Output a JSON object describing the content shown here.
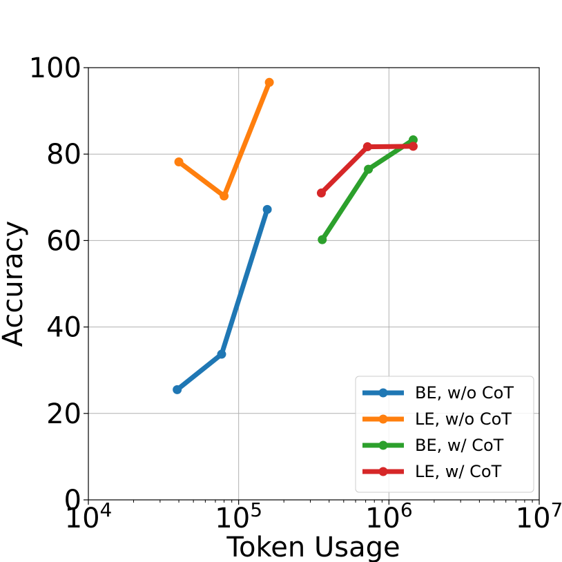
{
  "chart_data": {
    "type": "line",
    "xlabel": "Token Usage",
    "ylabel": "Accuracy",
    "xscale": "log",
    "xlim": [
      10000,
      10000000
    ],
    "ylim": [
      0,
      100
    ],
    "grid": true,
    "legend_position": "lower-right",
    "x_ticks": [
      {
        "value": 10000,
        "base": "10",
        "exp": "4"
      },
      {
        "value": 100000,
        "base": "10",
        "exp": "5"
      },
      {
        "value": 1000000,
        "base": "10",
        "exp": "6"
      },
      {
        "value": 10000000,
        "base": "10",
        "exp": "7"
      }
    ],
    "y_ticks": [
      {
        "value": 0,
        "label": "0"
      },
      {
        "value": 20,
        "label": "20"
      },
      {
        "value": 40,
        "label": "40"
      },
      {
        "value": 60,
        "label": "60"
      },
      {
        "value": 80,
        "label": "80"
      },
      {
        "value": 100,
        "label": "100"
      }
    ],
    "series": [
      {
        "name": "BE, w/o CoT",
        "color": "#1f77b4",
        "x": [
          39000,
          77000,
          155000
        ],
        "y": [
          25.5,
          33.7,
          67.2
        ]
      },
      {
        "name": "LE, w/o CoT",
        "color": "#ff7f0e",
        "x": [
          40000,
          80000,
          160000
        ],
        "y": [
          78.2,
          70.3,
          96.6
        ]
      },
      {
        "name": "BE, w/ CoT",
        "color": "#2ca02c",
        "x": [
          360000,
          730000,
          1450000
        ],
        "y": [
          60.2,
          76.5,
          83.3
        ]
      },
      {
        "name": "LE, w/ CoT",
        "color": "#d62728",
        "x": [
          355000,
          720000,
          1450000
        ],
        "y": [
          71.0,
          81.7,
          81.8
        ]
      }
    ]
  }
}
